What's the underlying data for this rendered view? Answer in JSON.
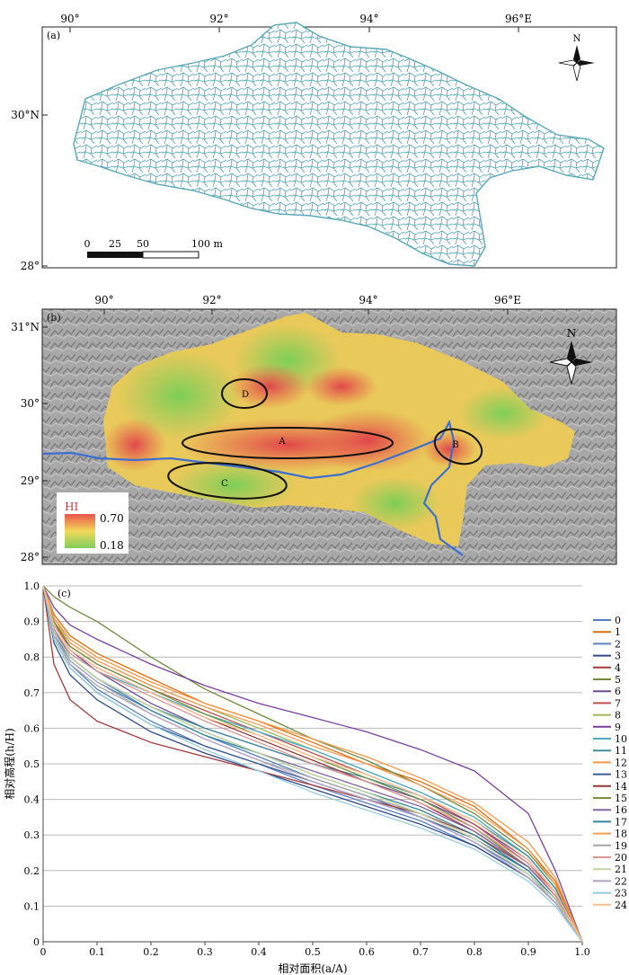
{
  "panel_a": {
    "label": "(a)",
    "top_ticks": [
      "90°",
      "92°",
      "94°",
      "96°E"
    ],
    "left_ticks": [
      "30°N",
      "28°"
    ],
    "north": "N",
    "scale_labels": [
      "0",
      "25",
      "50",
      "100 m"
    ],
    "colors": {
      "streams": "#5aa9b8"
    }
  },
  "panel_b": {
    "label": "(b)",
    "top_ticks": [
      "90°",
      "92°",
      "94°",
      "96°E"
    ],
    "left_ticks": [
      "31°N",
      "30°",
      "29°",
      "28°"
    ],
    "north": "N",
    "regions": [
      "A",
      "B",
      "C",
      "D"
    ],
    "legend_title": "HI",
    "legend_max": "0.70",
    "legend_min": "0.18",
    "colors": {
      "high": "#e8554a",
      "mid": "#f2d85a",
      "low": "#7fcf5a",
      "river": "#3d6fd0",
      "hillshade": "#9a9a9a"
    }
  },
  "panel_c": {
    "label": "(c)"
  },
  "chart_data": {
    "type": "line",
    "title": "",
    "xlabel": "相对面积(a/A)",
    "ylabel": "相对高程(h/H)",
    "xlim": [
      0,
      1
    ],
    "ylim": [
      0,
      1
    ],
    "x_ticks": [
      "0",
      "0.1",
      "0.2",
      "0.3",
      "0.4",
      "0.5",
      "0.6",
      "0.7",
      "0.8",
      "0.9",
      "1.0"
    ],
    "y_ticks": [
      "0",
      "0.1",
      "0.2",
      "0.3",
      "0.4",
      "0.5",
      "0.6",
      "0.7",
      "0.8",
      "0.9",
      "1.0"
    ],
    "grid": "horizontal",
    "legend": "right",
    "x": [
      0,
      0.02,
      0.05,
      0.1,
      0.2,
      0.3,
      0.4,
      0.5,
      0.6,
      0.7,
      0.8,
      0.9,
      0.95,
      1.0
    ],
    "series": [
      {
        "name": "0",
        "color": "#4f81bd",
        "values": [
          1.0,
          0.88,
          0.8,
          0.74,
          0.65,
          0.58,
          0.52,
          0.46,
          0.41,
          0.35,
          0.28,
          0.19,
          0.12,
          0.0
        ]
      },
      {
        "name": "1",
        "color": "#e46c0a",
        "values": [
          1.0,
          0.92,
          0.86,
          0.81,
          0.74,
          0.67,
          0.62,
          0.56,
          0.5,
          0.45,
          0.38,
          0.26,
          0.17,
          0.0
        ]
      },
      {
        "name": "2",
        "color": "#5b7fc0",
        "values": [
          1.0,
          0.86,
          0.78,
          0.71,
          0.62,
          0.55,
          0.5,
          0.44,
          0.39,
          0.34,
          0.27,
          0.18,
          0.11,
          0.0
        ]
      },
      {
        "name": "3",
        "color": "#2f4a86",
        "values": [
          1.0,
          0.84,
          0.75,
          0.68,
          0.59,
          0.53,
          0.48,
          0.43,
          0.38,
          0.33,
          0.27,
          0.18,
          0.11,
          0.0
        ]
      },
      {
        "name": "4",
        "color": "#a33a3a",
        "values": [
          1.0,
          0.78,
          0.68,
          0.62,
          0.56,
          0.52,
          0.48,
          0.44,
          0.4,
          0.36,
          0.3,
          0.21,
          0.13,
          0.0
        ]
      },
      {
        "name": "5",
        "color": "#6e8b3d",
        "values": [
          1.0,
          0.97,
          0.94,
          0.9,
          0.8,
          0.71,
          0.64,
          0.57,
          0.51,
          0.44,
          0.36,
          0.25,
          0.16,
          0.0
        ]
      },
      {
        "name": "6",
        "color": "#6a4c93",
        "values": [
          1.0,
          0.9,
          0.82,
          0.76,
          0.67,
          0.6,
          0.55,
          0.5,
          0.45,
          0.4,
          0.33,
          0.23,
          0.14,
          0.0
        ]
      },
      {
        "name": "7",
        "color": "#c0504d",
        "values": [
          1.0,
          0.89,
          0.83,
          0.78,
          0.71,
          0.65,
          0.59,
          0.53,
          0.47,
          0.41,
          0.33,
          0.22,
          0.14,
          0.0
        ]
      },
      {
        "name": "8",
        "color": "#9bbb59",
        "values": [
          1.0,
          0.9,
          0.84,
          0.79,
          0.72,
          0.66,
          0.6,
          0.54,
          0.48,
          0.42,
          0.35,
          0.24,
          0.15,
          0.0
        ]
      },
      {
        "name": "9",
        "color": "#7b3f9e",
        "values": [
          1.0,
          0.94,
          0.89,
          0.85,
          0.78,
          0.72,
          0.67,
          0.63,
          0.59,
          0.54,
          0.48,
          0.36,
          0.2,
          0.0
        ]
      },
      {
        "name": "10",
        "color": "#4bacc6",
        "values": [
          1.0,
          0.88,
          0.81,
          0.76,
          0.7,
          0.64,
          0.59,
          0.54,
          0.48,
          0.42,
          0.35,
          0.24,
          0.15,
          0.0
        ]
      },
      {
        "name": "11",
        "color": "#3f8f9e",
        "values": [
          1.0,
          0.87,
          0.8,
          0.74,
          0.66,
          0.6,
          0.55,
          0.5,
          0.46,
          0.41,
          0.34,
          0.24,
          0.15,
          0.0
        ]
      },
      {
        "name": "12",
        "color": "#f79646",
        "values": [
          1.0,
          0.91,
          0.85,
          0.8,
          0.73,
          0.67,
          0.62,
          0.57,
          0.52,
          0.46,
          0.39,
          0.28,
          0.18,
          0.0
        ]
      },
      {
        "name": "13",
        "color": "#365f91",
        "values": [
          1.0,
          0.85,
          0.77,
          0.7,
          0.61,
          0.55,
          0.5,
          0.45,
          0.4,
          0.35,
          0.29,
          0.2,
          0.12,
          0.0
        ]
      },
      {
        "name": "14",
        "color": "#953735",
        "values": [
          1.0,
          0.89,
          0.82,
          0.77,
          0.7,
          0.63,
          0.57,
          0.51,
          0.45,
          0.39,
          0.31,
          0.21,
          0.13,
          0.0
        ]
      },
      {
        "name": "15",
        "color": "#77933c",
        "values": [
          1.0,
          0.9,
          0.83,
          0.78,
          0.71,
          0.64,
          0.58,
          0.52,
          0.46,
          0.4,
          0.32,
          0.21,
          0.13,
          0.0
        ]
      },
      {
        "name": "16",
        "color": "#8064a2",
        "values": [
          1.0,
          0.88,
          0.8,
          0.74,
          0.66,
          0.59,
          0.53,
          0.48,
          0.43,
          0.38,
          0.31,
          0.21,
          0.13,
          0.0
        ]
      },
      {
        "name": "17",
        "color": "#31859c",
        "values": [
          1.0,
          0.87,
          0.79,
          0.73,
          0.65,
          0.58,
          0.53,
          0.47,
          0.42,
          0.37,
          0.3,
          0.2,
          0.12,
          0.0
        ]
      },
      {
        "name": "18",
        "color": "#f59d56",
        "values": [
          1.0,
          0.91,
          0.84,
          0.79,
          0.72,
          0.66,
          0.61,
          0.55,
          0.5,
          0.44,
          0.37,
          0.26,
          0.16,
          0.0
        ]
      },
      {
        "name": "19",
        "color": "#a6a6a6",
        "values": [
          1.0,
          0.86,
          0.78,
          0.72,
          0.64,
          0.57,
          0.51,
          0.46,
          0.41,
          0.36,
          0.29,
          0.19,
          0.11,
          0.0
        ]
      },
      {
        "name": "20",
        "color": "#d99694",
        "values": [
          1.0,
          0.88,
          0.81,
          0.76,
          0.69,
          0.62,
          0.56,
          0.5,
          0.45,
          0.39,
          0.32,
          0.22,
          0.13,
          0.0
        ]
      },
      {
        "name": "21",
        "color": "#c3d69b",
        "values": [
          1.0,
          0.87,
          0.8,
          0.74,
          0.66,
          0.59,
          0.53,
          0.47,
          0.42,
          0.36,
          0.29,
          0.19,
          0.12,
          0.0
        ]
      },
      {
        "name": "22",
        "color": "#b3a2c7",
        "values": [
          1.0,
          0.86,
          0.79,
          0.73,
          0.64,
          0.57,
          0.51,
          0.45,
          0.4,
          0.35,
          0.28,
          0.18,
          0.11,
          0.0
        ]
      },
      {
        "name": "23",
        "color": "#93cddd",
        "values": [
          1.0,
          0.85,
          0.77,
          0.7,
          0.61,
          0.54,
          0.48,
          0.42,
          0.37,
          0.32,
          0.26,
          0.17,
          0.1,
          0.0
        ]
      },
      {
        "name": "24",
        "color": "#fac090",
        "values": [
          1.0,
          0.89,
          0.82,
          0.77,
          0.7,
          0.63,
          0.58,
          0.52,
          0.47,
          0.41,
          0.34,
          0.23,
          0.14,
          0.0
        ]
      }
    ]
  }
}
